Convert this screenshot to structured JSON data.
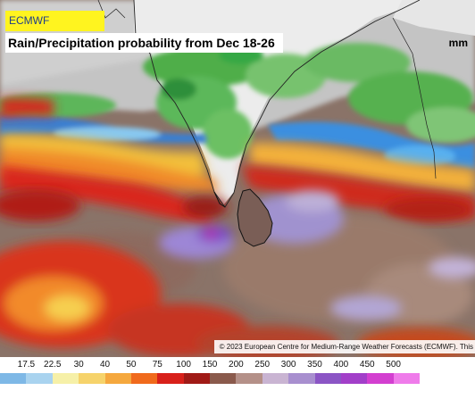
{
  "badge": {
    "label": "ECMWF"
  },
  "title": {
    "text": "Rain/Precipitation probability from Dec 18-26"
  },
  "copyright": {
    "text": "© 2023 European Centre for Medium-Range Weather Forecasts (ECMWF). This"
  },
  "legend": {
    "unit": "mm",
    "labels": [
      "17.5",
      "22.5",
      "30",
      "40",
      "50",
      "75",
      "100",
      "150",
      "200",
      "250",
      "300",
      "350",
      "400",
      "450",
      "500"
    ],
    "colors": [
      "#7eb8e6",
      "#a9d3ef",
      "#f6f0a8",
      "#f6d36b",
      "#f5a83e",
      "#f06a1c",
      "#d8201a",
      "#a01a16",
      "#8a5a4c",
      "#b49088",
      "#c9b4d2",
      "#a88fcf",
      "#8b55c5",
      "#a23fc9",
      "#d33fd0",
      "#ef7bea"
    ]
  }
}
